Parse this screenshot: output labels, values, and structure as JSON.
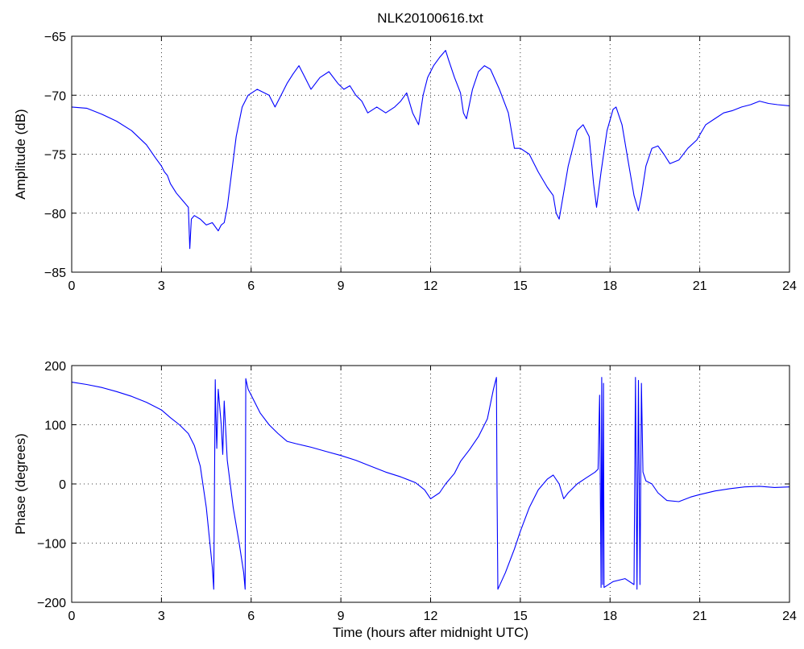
{
  "figure": {
    "title": "NLK20100616.txt",
    "line_color": "#0000ff"
  },
  "chart_data": [
    {
      "type": "line",
      "title": "NLK20100616.txt",
      "xlabel": "",
      "ylabel": "Amplitude (dB)",
      "xlim": [
        0,
        24
      ],
      "ylim": [
        -85,
        -65
      ],
      "xticks": [
        0,
        3,
        6,
        9,
        12,
        15,
        18,
        21,
        24
      ],
      "yticks": [
        -85,
        -80,
        -75,
        -70,
        -65
      ],
      "xtick_labels": [
        "0",
        "3",
        "6",
        "9",
        "12",
        "15",
        "18",
        "21",
        "24"
      ],
      "ytick_labels": [
        "−85",
        "−80",
        "−75",
        "−70",
        "−65"
      ],
      "grid": true,
      "series": [
        {
          "color": "#0000ff",
          "x": [
            0,
            0.5,
            1,
            1.5,
            2,
            2.5,
            2.8,
            3.0,
            3.1,
            3.2,
            3.3,
            3.5,
            3.7,
            3.9,
            3.95,
            4.0,
            4.1,
            4.3,
            4.5,
            4.7,
            4.9,
            5.0,
            5.1,
            5.2,
            5.3,
            5.4,
            5.5,
            5.7,
            5.9,
            6.2,
            6.6,
            6.8,
            7.0,
            7.2,
            7.4,
            7.6,
            7.8,
            8.0,
            8.3,
            8.6,
            8.9,
            9.1,
            9.3,
            9.5,
            9.7,
            9.9,
            10.2,
            10.5,
            10.8,
            11.0,
            11.2,
            11.4,
            11.6,
            11.75,
            11.9,
            12.1,
            12.3,
            12.5,
            12.6,
            12.8,
            13.0,
            13.1,
            13.2,
            13.4,
            13.6,
            13.8,
            14.0,
            14.3,
            14.6,
            14.8,
            15.0,
            15.3,
            15.6,
            15.9,
            16.1,
            16.2,
            16.3,
            16.6,
            16.9,
            17.1,
            17.3,
            17.45,
            17.55,
            17.7,
            17.9,
            18.1,
            18.2,
            18.4,
            18.6,
            18.8,
            18.95,
            19.05,
            19.2,
            19.4,
            19.6,
            19.8,
            20.0,
            20.3,
            20.6,
            20.9,
            21.2,
            21.5,
            21.8,
            22.1,
            22.4,
            22.7,
            23.0,
            23.3,
            23.6,
            24.0
          ],
          "y": [
            -71,
            -71.1,
            -71.6,
            -72.2,
            -73.0,
            -74.2,
            -75.3,
            -76.0,
            -76.5,
            -76.8,
            -77.5,
            -78.3,
            -78.9,
            -79.5,
            -83.0,
            -80.5,
            -80.2,
            -80.5,
            -81.0,
            -80.8,
            -81.5,
            -81.0,
            -80.8,
            -79.5,
            -77.5,
            -75.5,
            -73.5,
            -71.0,
            -70.0,
            -69.5,
            -70.0,
            -71.0,
            -70.0,
            -69.0,
            -68.2,
            -67.5,
            -68.5,
            -69.5,
            -68.5,
            -68.0,
            -69.0,
            -69.5,
            -69.2,
            -70.0,
            -70.5,
            -71.5,
            -71.0,
            -71.5,
            -71.0,
            -70.5,
            -69.8,
            -71.5,
            -72.5,
            -70.0,
            -68.5,
            -67.5,
            -66.8,
            -66.2,
            -67.0,
            -68.5,
            -69.8,
            -71.5,
            -72.0,
            -69.5,
            -68.0,
            -67.5,
            -67.8,
            -69.5,
            -71.5,
            -74.5,
            -74.5,
            -75.0,
            -76.5,
            -77.8,
            -78.5,
            -80.0,
            -80.5,
            -76.0,
            -73.0,
            -72.5,
            -73.5,
            -77.5,
            -79.5,
            -76.5,
            -73.0,
            -71.2,
            -71.0,
            -72.5,
            -75.5,
            -78.5,
            -79.8,
            -78.5,
            -76.0,
            -74.5,
            -74.3,
            -75.0,
            -75.8,
            -75.5,
            -74.5,
            -73.8,
            -72.5,
            -72.0,
            -71.5,
            -71.3,
            -71.0,
            -70.8,
            -70.5,
            -70.7,
            -70.8,
            -70.9
          ]
        }
      ]
    },
    {
      "type": "line",
      "title": "",
      "xlabel": "Time (hours after midnight UTC)",
      "ylabel": "Phase (degrees)",
      "xlim": [
        0,
        24
      ],
      "ylim": [
        -200,
        200
      ],
      "xticks": [
        0,
        3,
        6,
        9,
        12,
        15,
        18,
        21,
        24
      ],
      "yticks": [
        -200,
        -100,
        0,
        100,
        200
      ],
      "xtick_labels": [
        "0",
        "3",
        "6",
        "9",
        "12",
        "15",
        "18",
        "21",
        "24"
      ],
      "ytick_labels": [
        "−200",
        "−100",
        "0",
        "100",
        "200"
      ],
      "grid": true,
      "series": [
        {
          "color": "#0000ff",
          "x": [
            0,
            0.5,
            1,
            1.5,
            2,
            2.5,
            3.0,
            3.3,
            3.6,
            3.9,
            4.1,
            4.3,
            4.5,
            4.6,
            4.7,
            4.75,
            4.8,
            4.82,
            4.85,
            4.9,
            5.0,
            5.05,
            5.1,
            5.2,
            5.4,
            5.6,
            5.75,
            5.8,
            5.82,
            5.9,
            6.0,
            6.3,
            6.6,
            6.9,
            7.2,
            7.5,
            8.0,
            8.5,
            9.0,
            9.5,
            10.0,
            10.5,
            11.0,
            11.5,
            11.8,
            12.0,
            12.3,
            12.5,
            12.8,
            13.0,
            13.3,
            13.6,
            13.9,
            14.1,
            14.2,
            14.22,
            14.25,
            14.5,
            14.8,
            15.0,
            15.3,
            15.6,
            15.9,
            16.1,
            16.3,
            16.45,
            16.6,
            16.9,
            17.2,
            17.5,
            17.6,
            17.65,
            17.7,
            17.72,
            17.75,
            17.78,
            17.8,
            18.1,
            18.5,
            18.8,
            18.85,
            18.9,
            18.95,
            19.0,
            19.05,
            19.1,
            19.2,
            19.4,
            19.6,
            19.9,
            20.3,
            20.7,
            21.0,
            21.5,
            22.0,
            22.5,
            23.0,
            23.5,
            24.0
          ],
          "y": [
            172,
            168,
            163,
            156,
            148,
            138,
            125,
            112,
            100,
            85,
            65,
            30,
            -40,
            -90,
            -140,
            -178,
            176,
            120,
            60,
            160,
            100,
            50,
            140,
            40,
            -40,
            -100,
            -150,
            -178,
            178,
            160,
            150,
            120,
            100,
            85,
            72,
            68,
            62,
            55,
            48,
            40,
            30,
            20,
            12,
            2,
            -10,
            -25,
            -15,
            0,
            18,
            38,
            58,
            80,
            110,
            160,
            180,
            0,
            -178,
            -150,
            -110,
            -80,
            -40,
            -10,
            8,
            15,
            0,
            -25,
            -15,
            0,
            10,
            20,
            25,
            150,
            -175,
            180,
            -170,
            170,
            -175,
            -165,
            -160,
            -170,
            180,
            -178,
            175,
            -170,
            170,
            20,
            5,
            0,
            -15,
            -28,
            -30,
            -22,
            -18,
            -12,
            -8,
            -5,
            -4,
            -6,
            -5
          ]
        }
      ]
    }
  ]
}
